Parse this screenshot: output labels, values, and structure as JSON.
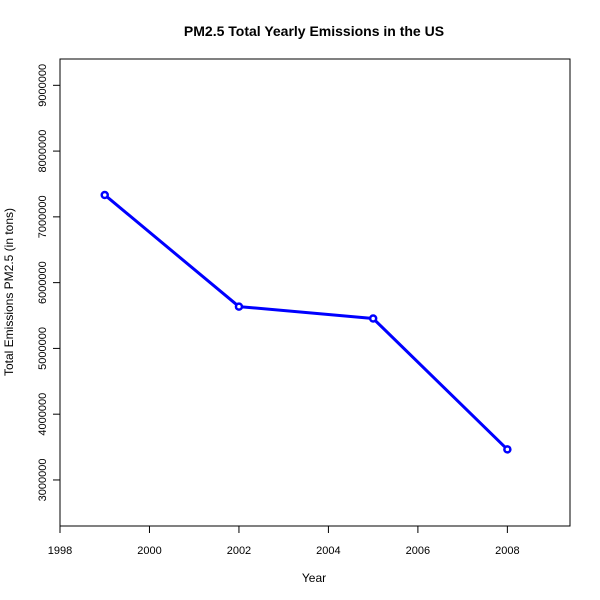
{
  "chart_data": {
    "type": "line",
    "title": "PM2.5 Total Yearly Emissions in the US",
    "xlabel": "Year",
    "ylabel": "Total Emissions PM2.5 (in tons)",
    "x": [
      1999,
      2002,
      2005,
      2008
    ],
    "series": [
      {
        "values": [
          7332967,
          5635780,
          5454703,
          3464206
        ]
      }
    ],
    "xlim": [
      1998,
      2009.4
    ],
    "ylim": [
      2300000,
      9400000
    ],
    "x_ticks": [
      "1998",
      "2000",
      "2002",
      "2004",
      "2006",
      "2008"
    ],
    "y_ticks": [
      "3000000",
      "4000000",
      "5000000",
      "6000000",
      "7000000",
      "8000000",
      "9000000"
    ],
    "line_color": "#0000ff",
    "marker": "open-circle",
    "grid": false,
    "legend": "none"
  }
}
